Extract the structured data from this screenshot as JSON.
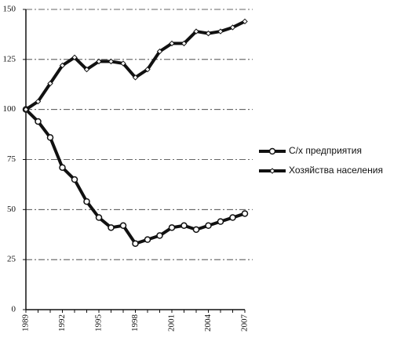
{
  "chart_data": {
    "type": "line",
    "x": [
      1989,
      1990,
      1991,
      1992,
      1993,
      1994,
      1995,
      1996,
      1997,
      1998,
      1999,
      2000,
      2001,
      2002,
      2003,
      2004,
      2005,
      2006,
      2007
    ],
    "xlim": [
      1989,
      2007
    ],
    "xticks": [
      1989,
      1992,
      1995,
      1998,
      2001,
      2004,
      2007
    ],
    "ylim": [
      0,
      150
    ],
    "yticks": [
      0,
      25,
      50,
      75,
      100,
      125,
      150
    ],
    "grid": true,
    "legend": "right",
    "series": [
      {
        "name": "С/х предприятия",
        "color": "#111111",
        "marker": "circle",
        "values": [
          100,
          94,
          86,
          71,
          65,
          54,
          46,
          41,
          42,
          33,
          35,
          37,
          41,
          42,
          40,
          42,
          44,
          46,
          48
        ]
      },
      {
        "name": "Хозяйства населения",
        "color": "#111111",
        "marker": "diamond",
        "values": [
          100,
          104,
          113,
          122,
          126,
          120,
          124,
          124,
          123,
          116,
          120,
          129,
          133,
          133,
          139,
          138,
          139,
          141,
          144
        ]
      }
    ]
  }
}
